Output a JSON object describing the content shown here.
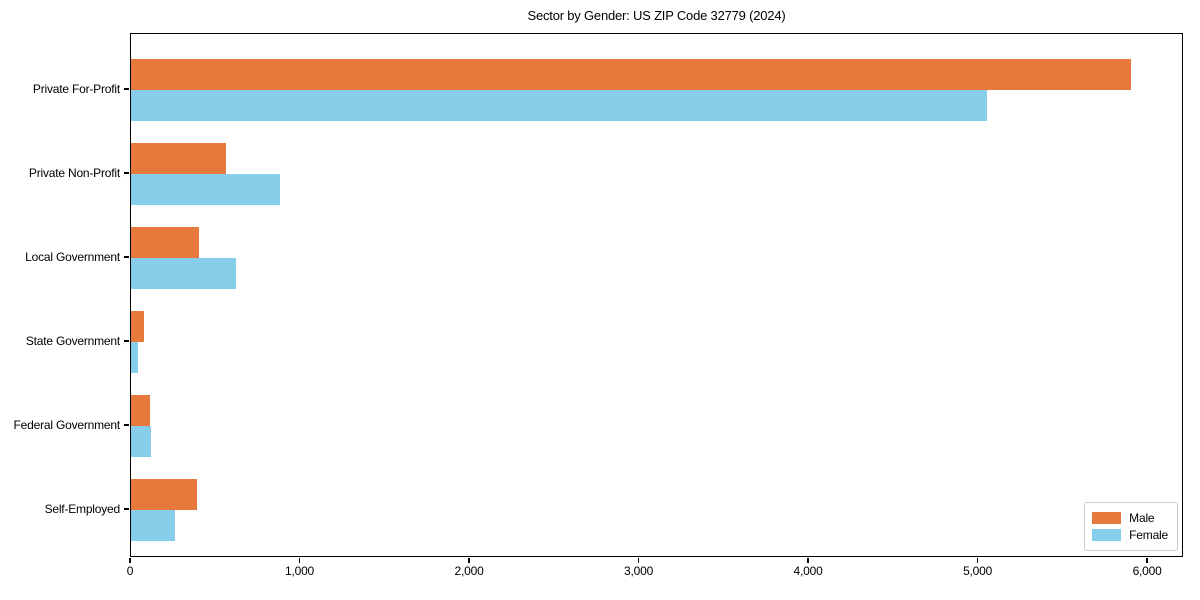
{
  "title": "Sector by Gender: US ZIP Code 32779 (2024)",
  "chart_data": {
    "type": "bar",
    "orientation": "horizontal",
    "title": "Sector by Gender: US ZIP Code 32779 (2024)",
    "categories": [
      "Private For-Profit",
      "Private Non-Profit",
      "Local Government",
      "State Government",
      "Federal Government",
      "Self-Employed"
    ],
    "series": [
      {
        "name": "Male",
        "color": "#e8793d",
        "values": [
          5900,
          560,
          400,
          75,
          110,
          390
        ]
      },
      {
        "name": "Female",
        "color": "#87ceeb",
        "values": [
          5050,
          880,
          620,
          40,
          120,
          260
        ]
      }
    ],
    "xlabel": "",
    "ylabel": "",
    "xlim": [
      0,
      6200
    ],
    "x_ticks": [
      0,
      1000,
      2000,
      3000,
      4000,
      5000,
      6000
    ],
    "x_tick_labels": [
      "0",
      "1,000",
      "2,000",
      "3,000",
      "4,000",
      "5,000",
      "6,000"
    ],
    "grid": false,
    "legend": {
      "position": "lower right",
      "entries": [
        "Male",
        "Female"
      ]
    }
  },
  "colors": {
    "male": "#e8793d",
    "female": "#87ceeb",
    "axis": "#000000",
    "legend_border": "#cccccc",
    "background": "#ffffff"
  }
}
